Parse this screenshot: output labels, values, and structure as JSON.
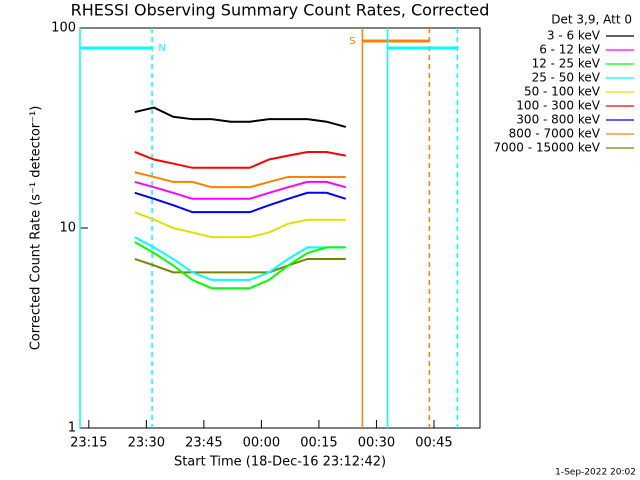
{
  "chart_data": {
    "type": "line",
    "title": "RHESSI Observing Summary Count Rates, Corrected",
    "x_label": "Start Time (18-Dec-16 23:12:42)",
    "y_label": "Corrected Count Rate (s⁻¹ detector⁻¹)",
    "legend_title": "Det 3,9, Att 0",
    "footer": "1-Sep-2022 20:02",
    "log_y": true,
    "xlim": [
      "23:12:42",
      "00:57:00"
    ],
    "xticks": [
      "23:15",
      "23:30",
      "23:45",
      "00:00",
      "00:15",
      "00:30",
      "00:45"
    ],
    "ylim": [
      1,
      100
    ],
    "yticks": [
      1,
      10,
      100
    ],
    "x": [
      "23:27",
      "23:32",
      "23:37",
      "23:42",
      "23:47",
      "23:52",
      "23:57",
      "00:02",
      "00:07",
      "00:12",
      "00:17",
      "00:22"
    ],
    "series": [
      {
        "name": "3 - 6 keV",
        "color": "#000000",
        "values": [
          38,
          40,
          36,
          35,
          35,
          34,
          34,
          35,
          35,
          35,
          34,
          32
        ]
      },
      {
        "name": "6 - 12 keV",
        "color": "#ff00ff",
        "values": [
          17,
          16,
          15,
          14,
          14,
          14,
          14,
          15,
          16,
          17,
          17,
          16
        ]
      },
      {
        "name": "12 - 25 keV",
        "color": "#00ff00",
        "values": [
          8.5,
          7.5,
          6.5,
          5.5,
          5,
          5,
          5,
          5.5,
          6.5,
          7.5,
          8,
          8
        ]
      },
      {
        "name": "25 - 50 keV",
        "color": "#00ffff",
        "values": [
          9,
          8,
          7,
          6,
          5.5,
          5.5,
          5.5,
          6,
          7,
          8,
          8,
          8
        ]
      },
      {
        "name": "50 - 100 keV",
        "color": "#e0e000",
        "values": [
          12,
          11,
          10,
          9.5,
          9,
          9,
          9,
          9.5,
          10.5,
          11,
          11,
          11
        ]
      },
      {
        "name": "100 - 300 keV",
        "color": "#ff0000",
        "values": [
          24,
          22,
          21,
          20,
          20,
          20,
          20,
          22,
          23,
          24,
          24,
          23
        ]
      },
      {
        "name": "300 - 800 keV",
        "color": "#0000ff",
        "values": [
          15,
          14,
          13,
          12,
          12,
          12,
          12,
          13,
          14,
          15,
          15,
          14
        ]
      },
      {
        "name": "800 - 7000 keV",
        "color": "#ff8000",
        "values": [
          19,
          18,
          17,
          17,
          16,
          16,
          16,
          17,
          18,
          18,
          18,
          18
        ]
      },
      {
        "name": "7000 - 15000 keV",
        "color": "#808000",
        "values": [
          7,
          6.5,
          6,
          6,
          6,
          6,
          6,
          6,
          6.5,
          7,
          7,
          7
        ]
      }
    ],
    "annotations": [
      {
        "label": "N",
        "color": "#00ffff",
        "start": "23:12:42",
        "end": "23:31:30"
      },
      {
        "label": "S",
        "color": "#ff8000",
        "start": "00:26:20",
        "end": "00:43:48"
      },
      {
        "color": "#00ffff",
        "start": "00:32:54",
        "end": "00:51:06"
      }
    ]
  }
}
